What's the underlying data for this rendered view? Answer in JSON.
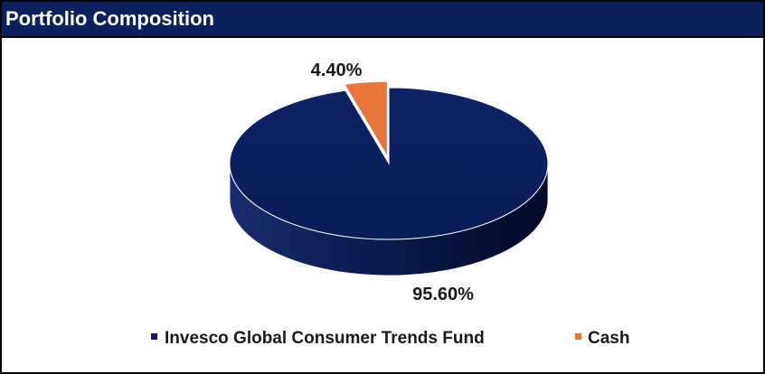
{
  "colors": {
    "title_bg": "#0c1f5e",
    "fund": "#0c1f5e",
    "cash": "#e8763a"
  },
  "chart_data": {
    "type": "pie",
    "title": "Portfolio Composition",
    "slices": [
      {
        "name": "Invesco Global Consumer Trends Fund",
        "value": 95.6,
        "label": "95.60%"
      },
      {
        "name": "Cash",
        "value": 4.4,
        "label": "4.40%"
      }
    ],
    "legend": {
      "placement": "bottom",
      "entries": [
        "Invesco Global Consumer Trends Fund",
        "Cash"
      ]
    }
  }
}
